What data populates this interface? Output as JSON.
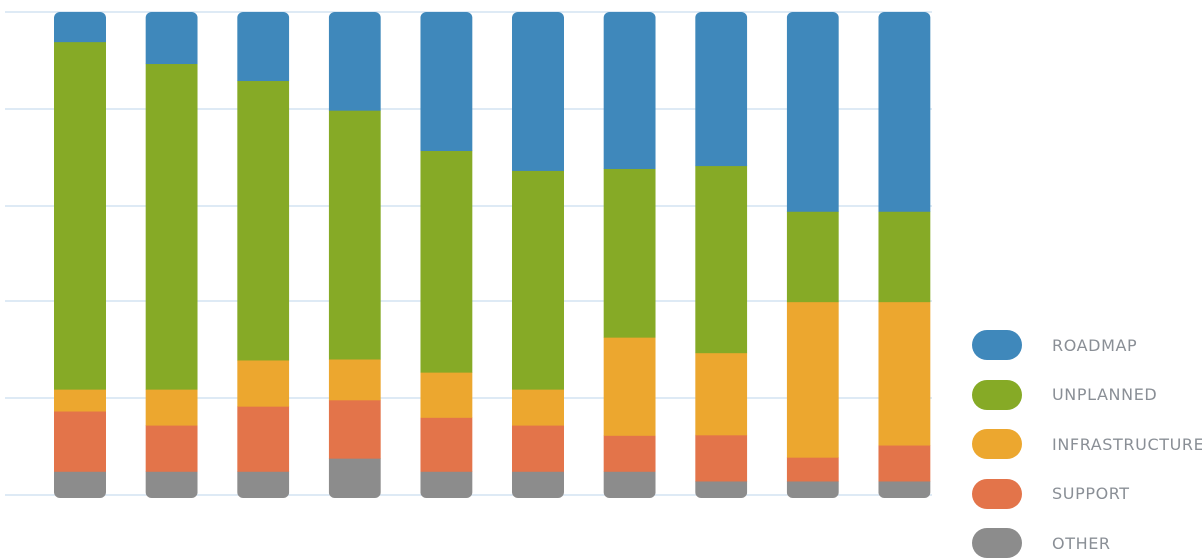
{
  "chart_data": {
    "type": "bar",
    "stacked": "percent",
    "title": "",
    "xlabel": "",
    "ylabel": "",
    "ylim": [
      0,
      100
    ],
    "grid": true,
    "legend_position": "right",
    "bar_count": 10,
    "series": [
      {
        "name": "OTHER",
        "color": "#8c8c8c",
        "values": [
          5.5,
          5.5,
          5.5,
          8.2,
          5.5,
          5.5,
          5.5,
          3.5,
          3.5,
          3.5
        ]
      },
      {
        "name": "SUPPORT",
        "color": "#e3744a",
        "values": [
          12.4,
          9.5,
          13.4,
          12.0,
          11.1,
          9.5,
          7.4,
          9.5,
          4.9,
          7.4
        ]
      },
      {
        "name": "INFRASTRUCTURE",
        "color": "#eca72f",
        "values": [
          4.5,
          7.4,
          9.5,
          8.4,
          9.3,
          7.4,
          20.2,
          16.9,
          32.0,
          29.5
        ]
      },
      {
        "name": "UNPLANNED",
        "color": "#86aa26",
        "values": [
          71.5,
          67.0,
          57.5,
          51.2,
          45.6,
          45.0,
          34.7,
          38.5,
          18.6,
          18.6
        ]
      },
      {
        "name": "ROADMAP",
        "color": "#3f88bb",
        "values": [
          6.1,
          10.6,
          14.1,
          20.2,
          28.5,
          32.6,
          32.2,
          31.6,
          41.0,
          41.0
        ]
      }
    ]
  },
  "legend": {
    "items": [
      {
        "label": "ROADMAP",
        "color": "#3f88bb"
      },
      {
        "label": "UNPLANNED",
        "color": "#86aa26"
      },
      {
        "label": "INFRASTRUCTURE",
        "color": "#eca72f"
      },
      {
        "label": "SUPPORT",
        "color": "#e3744a"
      },
      {
        "label": "OTHER",
        "color": "#8c8c8c"
      }
    ]
  },
  "style": {
    "grid_color": "#d4e4f2"
  }
}
